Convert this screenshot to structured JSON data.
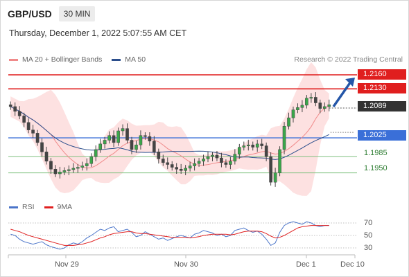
{
  "header": {
    "pair": "GBP/USD",
    "timeframe": "30 MIN"
  },
  "timestamp": "Thursday, December 1, 2022 5:07:55 AM CET",
  "legend_main": [
    {
      "label": "MA 20 + Bollinger Bands",
      "color": "#f08a8a"
    },
    {
      "label": "MA 50",
      "color": "#2b4e8c"
    }
  ],
  "credit": "Research © 2022 Trading Central",
  "legend_rsi": [
    {
      "label": "RSI",
      "color": "#4a74c9"
    },
    {
      "label": "9MA",
      "color": "#e02020"
    }
  ],
  "colors": {
    "resistance": "#e01e1e",
    "current": "#333333",
    "pivot": "#3a6fd8",
    "support": "#7cbf7c",
    "arrow": "#2456a8",
    "band": "#fddcdc"
  },
  "levels": {
    "r2": "1.2160",
    "r1": "1.2130",
    "current": "1.2089",
    "pivot": "1.2025",
    "s1": "1.1985",
    "s2": "1.1950"
  },
  "rsi_ticks": [
    "70",
    "50",
    "30"
  ],
  "x_labels": [
    "Nov 29",
    "Nov 30",
    "Dec 1",
    "Dec 10"
  ],
  "chart_data": {
    "type": "candlestick",
    "title": "",
    "price_range": [
      1.1905,
      1.2172
    ],
    "levels": {
      "resistance": [
        1.216,
        1.213
      ],
      "current": 1.2089,
      "pivot": 1.2025,
      "support": [
        1.1985,
        1.195
      ]
    },
    "close_path": [
      1.2092,
      1.2082,
      1.2072,
      1.2058,
      1.2042,
      1.2035,
      1.2015,
      1.1995,
      1.1975,
      1.1958,
      1.1948,
      1.1952,
      1.1955,
      1.1957,
      1.196,
      1.1962,
      1.1965,
      1.197,
      1.1985,
      1.2,
      1.2012,
      1.202,
      1.203,
      1.2015,
      1.204,
      1.2045,
      1.202,
      1.2,
      1.201,
      1.203,
      1.2028,
      1.2018,
      1.1995,
      1.198,
      1.1972,
      1.1968,
      1.1962,
      1.1958,
      1.1955,
      1.196,
      1.1965,
      1.197,
      1.1975,
      1.198,
      1.1985,
      1.1988,
      1.1982,
      1.1972,
      1.1968,
      1.1975,
      1.199,
      1.2005,
      1.2008,
      1.201,
      1.2005,
      1.2012,
      1.2008,
      1.1985,
      1.193,
      1.195,
      1.2,
      1.205,
      1.2068,
      1.2085,
      1.209,
      1.2095,
      1.211,
      1.2112,
      1.21,
      1.2088,
      1.2092,
      1.2096
    ],
    "forecast_target": 1.216,
    "rsi": {
      "ticks": [
        70,
        50,
        30
      ],
      "rsi_values": [
        52,
        50,
        44,
        40,
        38,
        36,
        38,
        40,
        35,
        32,
        30,
        28,
        30,
        35,
        38,
        36,
        40,
        46,
        50,
        55,
        60,
        58,
        62,
        64,
        56,
        58,
        60,
        55,
        48,
        50,
        56,
        52,
        48,
        44,
        46,
        42,
        45,
        48,
        50,
        48,
        46,
        52,
        54,
        58,
        56,
        54,
        50,
        52,
        48,
        50,
        58,
        60,
        62,
        58,
        55,
        57,
        52,
        44,
        34,
        38,
        55,
        66,
        70,
        72,
        70,
        68,
        72,
        70,
        66,
        64,
        66,
        66
      ],
      "ma_values": [
        60,
        58,
        56,
        53,
        50,
        48,
        46,
        44,
        42,
        40,
        38,
        36,
        34,
        34,
        34,
        35,
        36,
        38,
        40,
        43,
        46,
        48,
        51,
        53,
        54,
        55,
        56,
        56,
        54,
        53,
        53,
        52,
        51,
        50,
        49,
        48,
        47,
        47,
        47,
        47,
        46,
        47,
        48,
        50,
        51,
        52,
        52,
        52,
        52,
        51,
        52,
        54,
        56,
        57,
        57,
        57,
        56,
        53,
        49,
        46,
        47,
        50,
        54,
        58,
        62,
        64,
        65,
        66,
        66,
        66,
        66,
        66
      ]
    },
    "x_labels": [
      "Nov 29",
      "Nov 30",
      "Dec 1",
      "Dec 10"
    ]
  }
}
